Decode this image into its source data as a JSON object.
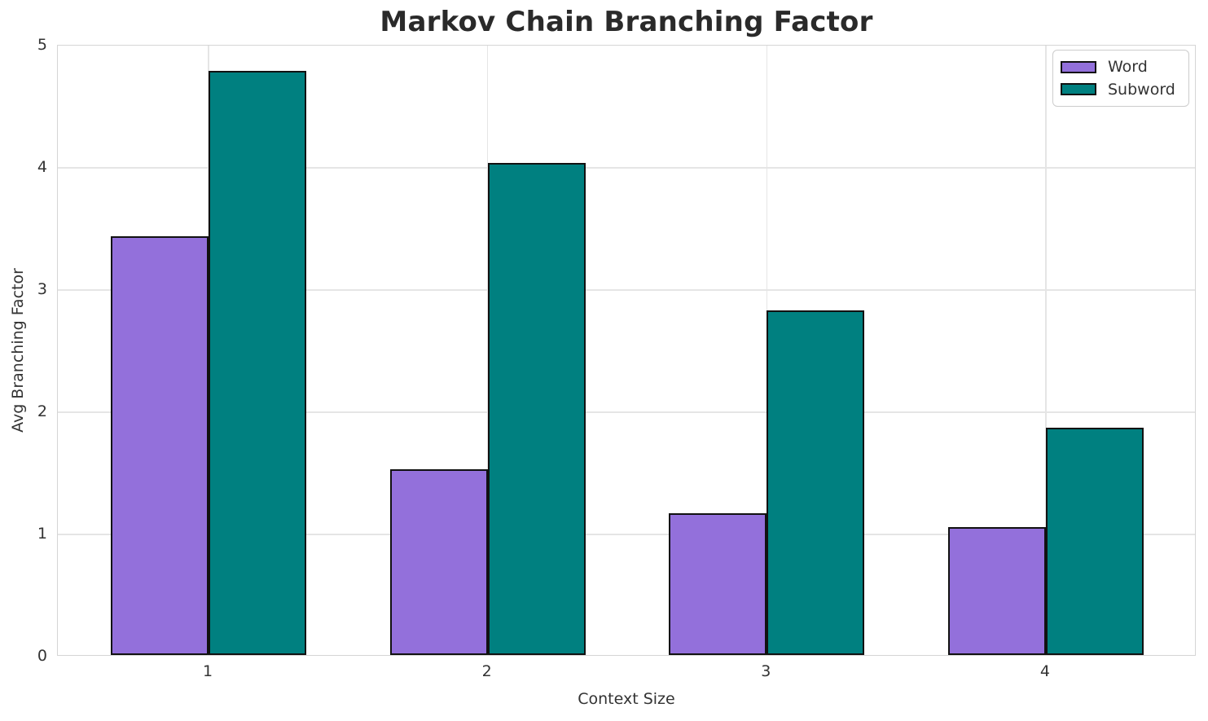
{
  "chart_data": {
    "type": "bar",
    "title": "Markov Chain Branching Factor",
    "xlabel": "Context Size",
    "ylabel": "Avg Branching Factor",
    "categories": [
      "1",
      "2",
      "3",
      "4"
    ],
    "series": [
      {
        "name": "Word",
        "color": "#9370DB",
        "values": [
          3.43,
          1.52,
          1.16,
          1.05
        ]
      },
      {
        "name": "Subword",
        "color": "#008080",
        "values": [
          4.78,
          4.03,
          2.82,
          1.86
        ]
      }
    ],
    "ylim": [
      0,
      5
    ],
    "yticks": [
      0,
      1,
      2,
      3,
      4,
      5
    ],
    "bar_edge_color": "#111111",
    "grid": true,
    "legend_position": "upper right",
    "legend_labels": [
      "Word",
      "Subword"
    ]
  }
}
